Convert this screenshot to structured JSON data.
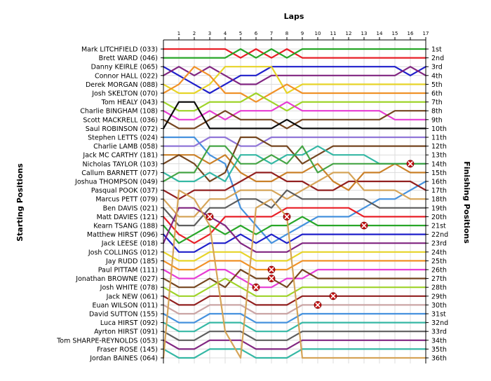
{
  "chart_data": {
    "type": "line",
    "title": "",
    "xlabel": "Laps",
    "ylabel_left": "Starting Positions",
    "ylabel_right": "Finishing Positions",
    "x": [
      0,
      1,
      2,
      3,
      4,
      5,
      6,
      7,
      8,
      9,
      10,
      11,
      12,
      13,
      14,
      15,
      16,
      17
    ],
    "xticks": [
      1,
      2,
      3,
      4,
      5,
      6,
      7,
      8,
      9,
      10,
      11,
      12,
      13,
      14,
      15,
      16,
      17
    ],
    "xlim": [
      0,
      17
    ],
    "ylim": [
      1,
      36
    ],
    "grid": true,
    "starting_positions": [
      "Mark LITCHFIELD (033)",
      "Brett WARD (046)",
      "Danny KEIRLE (065)",
      "Connor HALL (022)",
      "Derek MORGAN (088)",
      "Josh SKELTON (070)",
      "Tom HEALY (043)",
      "Charlie BINGHAM (108)",
      "Scott MACKRELL (036)",
      "Saul ROBINSON  (072)",
      "Stephen LETTS (024)",
      "Charlie LAMB (058)",
      "Jack MC CARTHY (181)",
      "Nicholas TAYLOR (103)",
      "Callum BARNETT (077)",
      "Joshua THOMPSON (049)",
      "Pasqual POOK (037)",
      "Marcus PETT (079)",
      "Ben DAVIS (021)",
      "Matt DAVIES (121)",
      "Kearn TSANG (188)",
      "Matthew  HIRST (096)",
      "Jack LEESE (018)",
      "Josh COLLINGS (012)",
      "Jay RUDD (185)",
      "Paul  PITTAM (111)",
      "Jonathan BROWNE (027)",
      "Josh WHITE (078)",
      "Jack NEW (061)",
      "Euan WILSON (011)",
      "David SUTTON (155)",
      "Luca HIRST (092)",
      "Ayrton HIRST (091)",
      "Tom SHARPE-REYNOLDS (053)",
      "Fraser ROSE (145)",
      "Jordan BAINES (064)"
    ],
    "finishing_positions": [
      "1st",
      "2nd",
      "3rd",
      "4th",
      "5th",
      "6th",
      "7th",
      "8th",
      "9th",
      "10th",
      "11th",
      "12th",
      "13th",
      "14th",
      "15th",
      "16th",
      "17th",
      "18th",
      "19th",
      "20th",
      "21st",
      "22nd",
      "23rd",
      "24th",
      "25th",
      "26th",
      "27th",
      "28th",
      "29th",
      "30th",
      "31st",
      "32nd",
      "33rd",
      "34th",
      "35th",
      "36th"
    ],
    "series": [
      {
        "color": "#e8141c",
        "values": [
          1,
          1,
          1,
          1,
          1,
          2,
          1,
          2,
          1,
          2,
          2,
          2,
          2,
          2,
          2,
          2,
          2,
          2
        ]
      },
      {
        "color": "#1ea21e",
        "values": [
          2,
          2,
          2,
          2,
          2,
          1,
          2,
          1,
          2,
          1,
          1,
          1,
          1,
          1,
          1,
          1,
          1,
          1
        ]
      },
      {
        "color": "#1414c8",
        "values": [
          3,
          4,
          5,
          6,
          5,
          4,
          4,
          3,
          3,
          3,
          3,
          3,
          3,
          3,
          3,
          3,
          4,
          3
        ]
      },
      {
        "color": "#7a1a7a",
        "values": [
          4,
          3,
          4,
          3,
          4,
          5,
          5,
          4,
          4,
          4,
          4,
          4,
          4,
          4,
          4,
          4,
          3,
          4
        ]
      },
      {
        "color": "#e6d21e",
        "values": [
          5,
          6,
          6,
          5,
          3,
          3,
          3,
          3,
          6,
          5,
          5,
          5,
          5,
          5,
          5,
          5,
          5,
          5
        ]
      },
      {
        "color": "#f08c1e",
        "values": [
          6,
          5,
          3,
          4,
          6,
          6,
          7,
          6,
          5,
          6,
          6,
          6,
          6,
          6,
          6,
          6,
          6,
          6
        ]
      },
      {
        "color": "#9ad21e",
        "values": [
          7,
          8,
          8,
          7,
          7,
          7,
          6,
          7,
          8,
          7,
          7,
          7,
          7,
          7,
          7,
          7,
          7,
          7
        ]
      },
      {
        "color": "#e632d2",
        "values": [
          8,
          9,
          9,
          8,
          9,
          8,
          8,
          8,
          7,
          8,
          8,
          8,
          8,
          8,
          8,
          9,
          9,
          9
        ]
      },
      {
        "color": "#6e3c14",
        "values": [
          9,
          10,
          10,
          9,
          8,
          9,
          9,
          9,
          10,
          9,
          9,
          9,
          9,
          9,
          9,
          8,
          8,
          8
        ]
      },
      {
        "color": "#000000",
        "values": [
          10,
          7,
          7,
          10,
          10,
          10,
          10,
          10,
          9,
          10,
          10,
          10,
          10,
          10,
          10,
          10,
          10,
          10
        ]
      },
      {
        "color": "#3c8cdc",
        "values": [
          11,
          11,
          11,
          13,
          14,
          19,
          21,
          23,
          22,
          21,
          20,
          20,
          20,
          19,
          18,
          18,
          17,
          16
        ]
      },
      {
        "color": "#8a6fd6",
        "values": [
          12,
          12,
          12,
          11,
          11,
          12,
          12,
          11,
          11,
          11,
          11,
          11,
          11,
          11,
          11,
          11,
          11,
          11
        ]
      },
      {
        "color": "#c87a1e",
        "values": [
          13,
          13,
          13,
          14,
          13,
          15,
          16,
          16,
          15,
          15,
          14,
          16,
          17,
          15,
          15,
          14,
          15,
          15
        ]
      },
      {
        "color": "#6e3c14",
        "values": [
          14,
          13,
          14,
          16,
          15,
          11,
          11,
          12,
          12,
          14,
          13,
          12,
          12,
          12,
          12,
          12,
          12,
          12
        ]
      },
      {
        "color": "#2ab4a0",
        "values": [
          15,
          16,
          16,
          15,
          16,
          13,
          13,
          14,
          13,
          13,
          12,
          13,
          13,
          13,
          14,
          14,
          14,
          14
        ]
      },
      {
        "color": "#3ca03c",
        "values": [
          16,
          15,
          15,
          12,
          12,
          14,
          14,
          13,
          14,
          12,
          15,
          14,
          14,
          14,
          14,
          14,
          14,
          14
        ]
      },
      {
        "color": "#8c1414",
        "values": [
          17,
          18,
          17,
          17,
          17,
          16,
          15,
          15,
          16,
          16,
          17,
          17,
          16,
          16,
          16,
          16,
          16,
          17
        ]
      },
      {
        "color": "#d4a050",
        "values": [
          18,
          20,
          20,
          18,
          18,
          17,
          17,
          17,
          18,
          17,
          16,
          15,
          15,
          17,
          17,
          17,
          18,
          18
        ]
      },
      {
        "color": "#555555",
        "values": [
          19,
          21,
          21,
          19,
          19,
          18,
          18,
          19,
          17,
          18,
          18,
          18,
          18,
          18,
          19,
          19,
          19,
          19
        ]
      },
      {
        "color": "#e8141c",
        "values": [
          20,
          22,
          23,
          22,
          20,
          20,
          20,
          20,
          19,
          19,
          19,
          19,
          19,
          20,
          20,
          20,
          20,
          20
        ]
      },
      {
        "color": "#1ea21e",
        "values": [
          21,
          23,
          22,
          21,
          22,
          21,
          22,
          21,
          21,
          20,
          21,
          21,
          21,
          21,
          21,
          21,
          21,
          21
        ]
      },
      {
        "color": "#1414c8",
        "values": [
          22,
          24,
          24,
          23,
          23,
          22,
          23,
          22,
          23,
          22,
          22,
          22,
          22,
          22,
          22,
          22,
          22,
          22
        ]
      },
      {
        "color": "#7a1a7a",
        "values": [
          23,
          19,
          19,
          20,
          21,
          23,
          24,
          24,
          24,
          23,
          23,
          23,
          23,
          23,
          23,
          23,
          23,
          23
        ]
      },
      {
        "color": "#e6d21e",
        "values": [
          24,
          25,
          25,
          24,
          24,
          24,
          25,
          25,
          25,
          24,
          24,
          24,
          24,
          24,
          24,
          24,
          24,
          24
        ]
      },
      {
        "color": "#f08c1e",
        "values": [
          25,
          26,
          26,
          25,
          25,
          25,
          26,
          26,
          26,
          25,
          25,
          25,
          25,
          25,
          25,
          25,
          25,
          25
        ]
      },
      {
        "color": "#e632d2",
        "values": [
          26,
          27,
          27,
          26,
          26,
          27,
          28,
          28,
          27,
          27,
          26,
          26,
          26,
          26,
          26,
          26,
          26,
          26
        ]
      },
      {
        "color": "#6e3c14",
        "values": [
          27,
          28,
          28,
          27,
          28,
          26,
          27,
          27,
          28,
          26,
          27,
          27,
          27,
          27,
          27,
          27,
          27,
          27
        ]
      },
      {
        "color": "#9ad21e",
        "values": [
          28,
          29,
          29,
          28,
          27,
          28,
          29,
          29,
          29,
          28,
          28,
          28,
          28,
          28,
          28,
          28,
          28,
          28
        ]
      },
      {
        "color": "#8c1414",
        "values": [
          29,
          30,
          30,
          29,
          29,
          29,
          30,
          30,
          30,
          29,
          29,
          29,
          29,
          29,
          29,
          29,
          29,
          29
        ]
      },
      {
        "color": "#c8a0a0",
        "values": [
          30,
          31,
          31,
          30,
          30,
          30,
          31,
          31,
          31,
          30,
          30,
          30,
          30,
          30,
          30,
          30,
          30,
          30
        ]
      },
      {
        "color": "#3c8cdc",
        "values": [
          31,
          32,
          32,
          31,
          31,
          31,
          32,
          32,
          32,
          31,
          31,
          31,
          31,
          31,
          31,
          31,
          31,
          31
        ]
      },
      {
        "color": "#2ab4a0",
        "values": [
          32,
          33,
          33,
          32,
          32,
          32,
          33,
          33,
          33,
          32,
          32,
          32,
          32,
          32,
          32,
          32,
          32,
          32
        ]
      },
      {
        "color": "#555555",
        "values": [
          33,
          34,
          34,
          33,
          33,
          33,
          34,
          34,
          34,
          33,
          33,
          33,
          33,
          33,
          33,
          33,
          33,
          33
        ]
      },
      {
        "color": "#7a1a7a",
        "values": [
          34,
          35,
          35,
          34,
          34,
          34,
          35,
          35,
          35,
          34,
          34,
          34,
          34,
          34,
          34,
          34,
          34,
          34
        ]
      },
      {
        "color": "#2ab4a0",
        "values": [
          35,
          36,
          36,
          35,
          35,
          35,
          36,
          36,
          36,
          35,
          35,
          35,
          35,
          35,
          35,
          35,
          35,
          35
        ]
      },
      {
        "color": "#d4a050",
        "values": [
          36,
          17,
          18,
          21,
          33,
          36,
          19,
          18,
          20,
          36,
          36,
          36,
          36,
          36,
          36,
          36,
          36,
          36
        ]
      }
    ],
    "retirements": [
      {
        "lap": 3,
        "position": 20
      },
      {
        "lap": 6,
        "position": 28
      },
      {
        "lap": 7,
        "position": 26
      },
      {
        "lap": 7,
        "position": 27
      },
      {
        "lap": 8,
        "position": 20
      },
      {
        "lap": 10,
        "position": 30
      },
      {
        "lap": 11,
        "position": 29
      },
      {
        "lap": 13,
        "position": 21
      },
      {
        "lap": 16,
        "position": 14
      }
    ]
  }
}
